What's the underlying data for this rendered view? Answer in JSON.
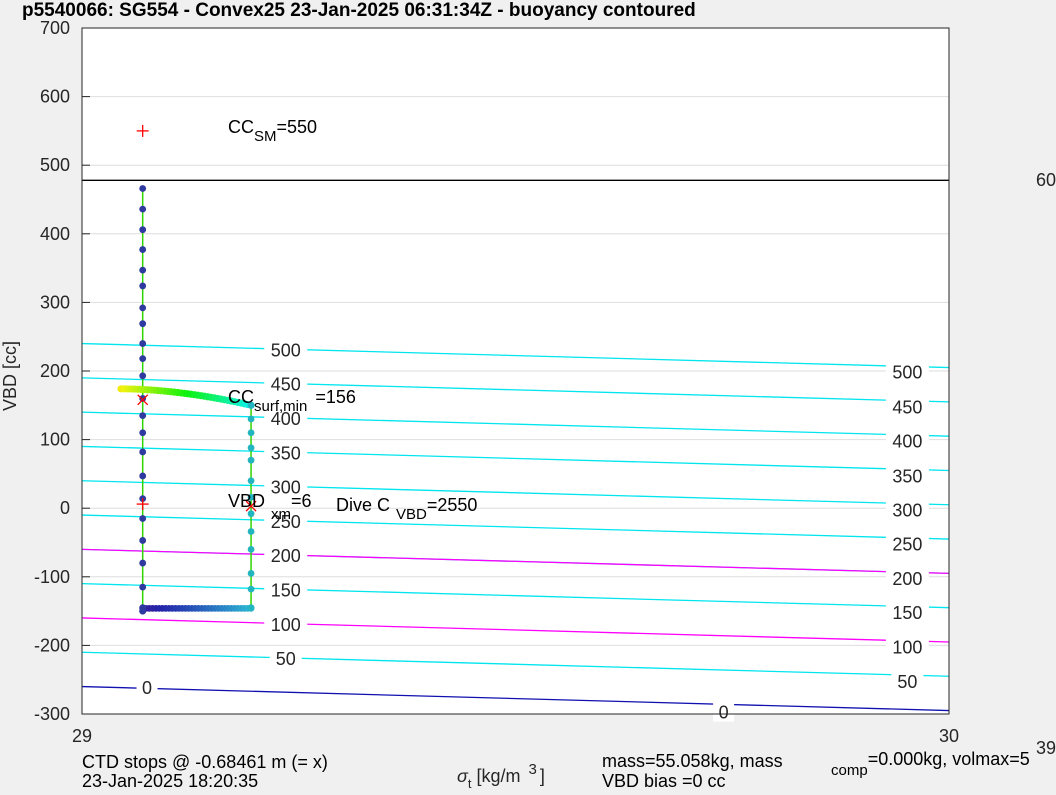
{
  "chart_data": {
    "type": "scatter",
    "title": "p5540066: SG554 - Convex25 23-Jan-2025 06:31:34Z - buoyancy contoured",
    "ylabel": "VBD [cc]",
    "xlabel_main": "σ",
    "xlabel_sub": "t",
    "xlabel_rest": " [kg/m",
    "xlabel_sup": "3",
    "xlabel_end": "]",
    "xlim": [
      29,
      30
    ],
    "ylim": [
      -300,
      700
    ],
    "xticks": [
      "29",
      "30"
    ],
    "yticks": [
      -300,
      -200,
      -100,
      0,
      100,
      200,
      300,
      400,
      500,
      600,
      700
    ],
    "grid": true,
    "colors": {
      "contour": "#00e5ee",
      "contour_magenta": "#ff00ff",
      "contour_zero": "#1010b0",
      "path": "#2ed400",
      "dots": "#2f3aa0",
      "teal_dots": "#22b5c0",
      "marker": "#ff0000",
      "hline": "#000000"
    },
    "hline": 478,
    "contours": {
      "x_left": 29,
      "x_right": 30,
      "slope": -35,
      "cyan_left_intercepts": [
        240,
        190,
        140,
        90,
        40,
        -10,
        -60,
        -110,
        -210
      ],
      "magenta_left_intercepts": [
        -60,
        -160
      ],
      "zero_left_intercept": -260,
      "labels_left": [
        {
          "text": "500",
          "x": 29.235,
          "y": 230
        },
        {
          "text": "450",
          "x": 29.235,
          "y": 180
        },
        {
          "text": "400",
          "x": 29.235,
          "y": 130
        },
        {
          "text": "350",
          "x": 29.235,
          "y": 80
        },
        {
          "text": "300",
          "x": 29.235,
          "y": 30
        },
        {
          "text": "250",
          "x": 29.235,
          "y": -20
        },
        {
          "text": "200",
          "x": 29.235,
          "y": -70
        },
        {
          "text": "150",
          "x": 29.235,
          "y": -120
        },
        {
          "text": "100",
          "x": 29.235,
          "y": -170
        },
        {
          "text": "50",
          "x": 29.235,
          "y": -220
        },
        {
          "text": "0",
          "x": 29.075,
          "y": -262
        }
      ],
      "labels_right": [
        {
          "text": "500",
          "x": 29.952,
          "y": 198
        },
        {
          "text": "450",
          "x": 29.952,
          "y": 147
        },
        {
          "text": "400",
          "x": 29.952,
          "y": 97
        },
        {
          "text": "350",
          "x": 29.952,
          "y": 46
        },
        {
          "text": "300",
          "x": 29.952,
          "y": -3
        },
        {
          "text": "250",
          "x": 29.952,
          "y": -53
        },
        {
          "text": "200",
          "x": 29.952,
          "y": -103
        },
        {
          "text": "150",
          "x": 29.952,
          "y": -153
        },
        {
          "text": "100",
          "x": 29.952,
          "y": -203
        },
        {
          "text": "50",
          "x": 29.952,
          "y": -253
        },
        {
          "text": "0",
          "x": 29.74,
          "y": -298
        }
      ]
    },
    "series_down": {
      "x": [
        29.07,
        29.07,
        29.07,
        29.07,
        29.07,
        29.07,
        29.07,
        29.07,
        29.07,
        29.07,
        29.07,
        29.07,
        29.07,
        29.07,
        29.07,
        29.07,
        29.07,
        29.07,
        29.07,
        29.07,
        29.07,
        29.07,
        29.07,
        29.07
      ],
      "y": [
        466,
        436,
        406,
        377,
        347,
        324,
        292,
        269,
        240,
        218,
        193,
        160,
        135,
        110,
        82,
        47,
        14,
        -15,
        -47,
        -80,
        -115,
        -145,
        -150,
        -150
      ]
    },
    "series_bottom": {
      "x_start": 29.07,
      "x_end": 29.195,
      "y": -146,
      "count": 34
    },
    "series_up": {
      "x": [
        29.195,
        29.195,
        29.195,
        29.195,
        29.195,
        29.195,
        29.195,
        29.195,
        29.195,
        29.195,
        29.195,
        29.195,
        29.195,
        29.195
      ],
      "y": [
        -145,
        -118,
        -95,
        -60,
        -34,
        -8,
        16,
        40,
        70,
        88,
        110,
        130,
        150,
        150
      ]
    },
    "series_surface": {
      "x_start": 29.045,
      "x_end": 29.195,
      "y_start": 174,
      "y_end": 150,
      "count": 40
    },
    "markers": [
      {
        "type": "plus",
        "x": 29.07,
        "y": 550
      },
      {
        "type": "x",
        "x": 29.07,
        "y": 158
      },
      {
        "type": "plus",
        "x": 29.07,
        "y": 6
      },
      {
        "type": "x",
        "x": 29.195,
        "y": 3
      }
    ],
    "annotations": {
      "cc_sm_main": "CC",
      "cc_sm_sub": "SM",
      "cc_sm_val": "=550",
      "cc_surf_main": "CC",
      "cc_surf_sub": "surf,min",
      "cc_surf_val": "=156",
      "vbd_main": "VBD",
      "vbd_sub": "xm",
      "vbd_val": "=6",
      "divec_main": "Dive C",
      "divec_sub": "VBD",
      "divec_val": "=2550"
    },
    "right_labels": {
      "top": "60",
      "bottom": "39"
    },
    "footer": {
      "ctd_line1": "CTD stops @ -0.68461 m (= x)",
      "ctd_line2": "23-Jan-2025 18:20:35",
      "mass_line1": "mass=55.058kg, mass",
      "mass_sub": "comp",
      "mass_line1b": "=0.000kg, volmax=5",
      "mass_line2": "VBD bias =0 cc"
    }
  }
}
